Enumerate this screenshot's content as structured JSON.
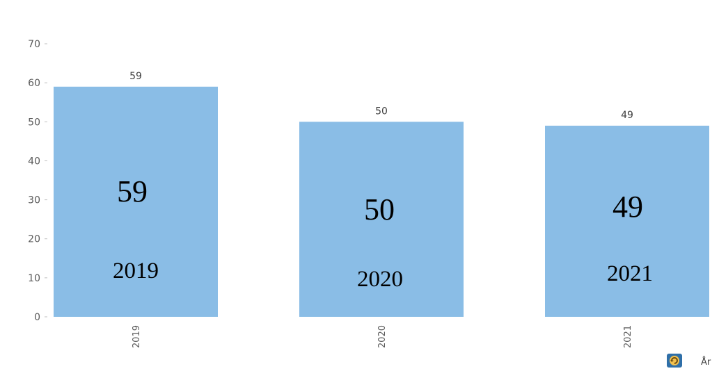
{
  "chart_data": {
    "type": "bar",
    "categories": [
      "2019",
      "2020",
      "2021"
    ],
    "values": [
      59,
      50,
      49
    ],
    "bar_color": "#8abde6",
    "ylim": [
      0,
      70
    ],
    "yticks": [
      0,
      10,
      20,
      30,
      40,
      50,
      60,
      70
    ],
    "grid": false,
    "legend": "none",
    "inner_labels": [
      {
        "value": "59",
        "year": "2019"
      },
      {
        "value": "50",
        "year": "2020"
      },
      {
        "value": "49",
        "year": "2021"
      }
    ]
  },
  "footer": {
    "axis_label": "År",
    "icon": "refresh-icon"
  }
}
